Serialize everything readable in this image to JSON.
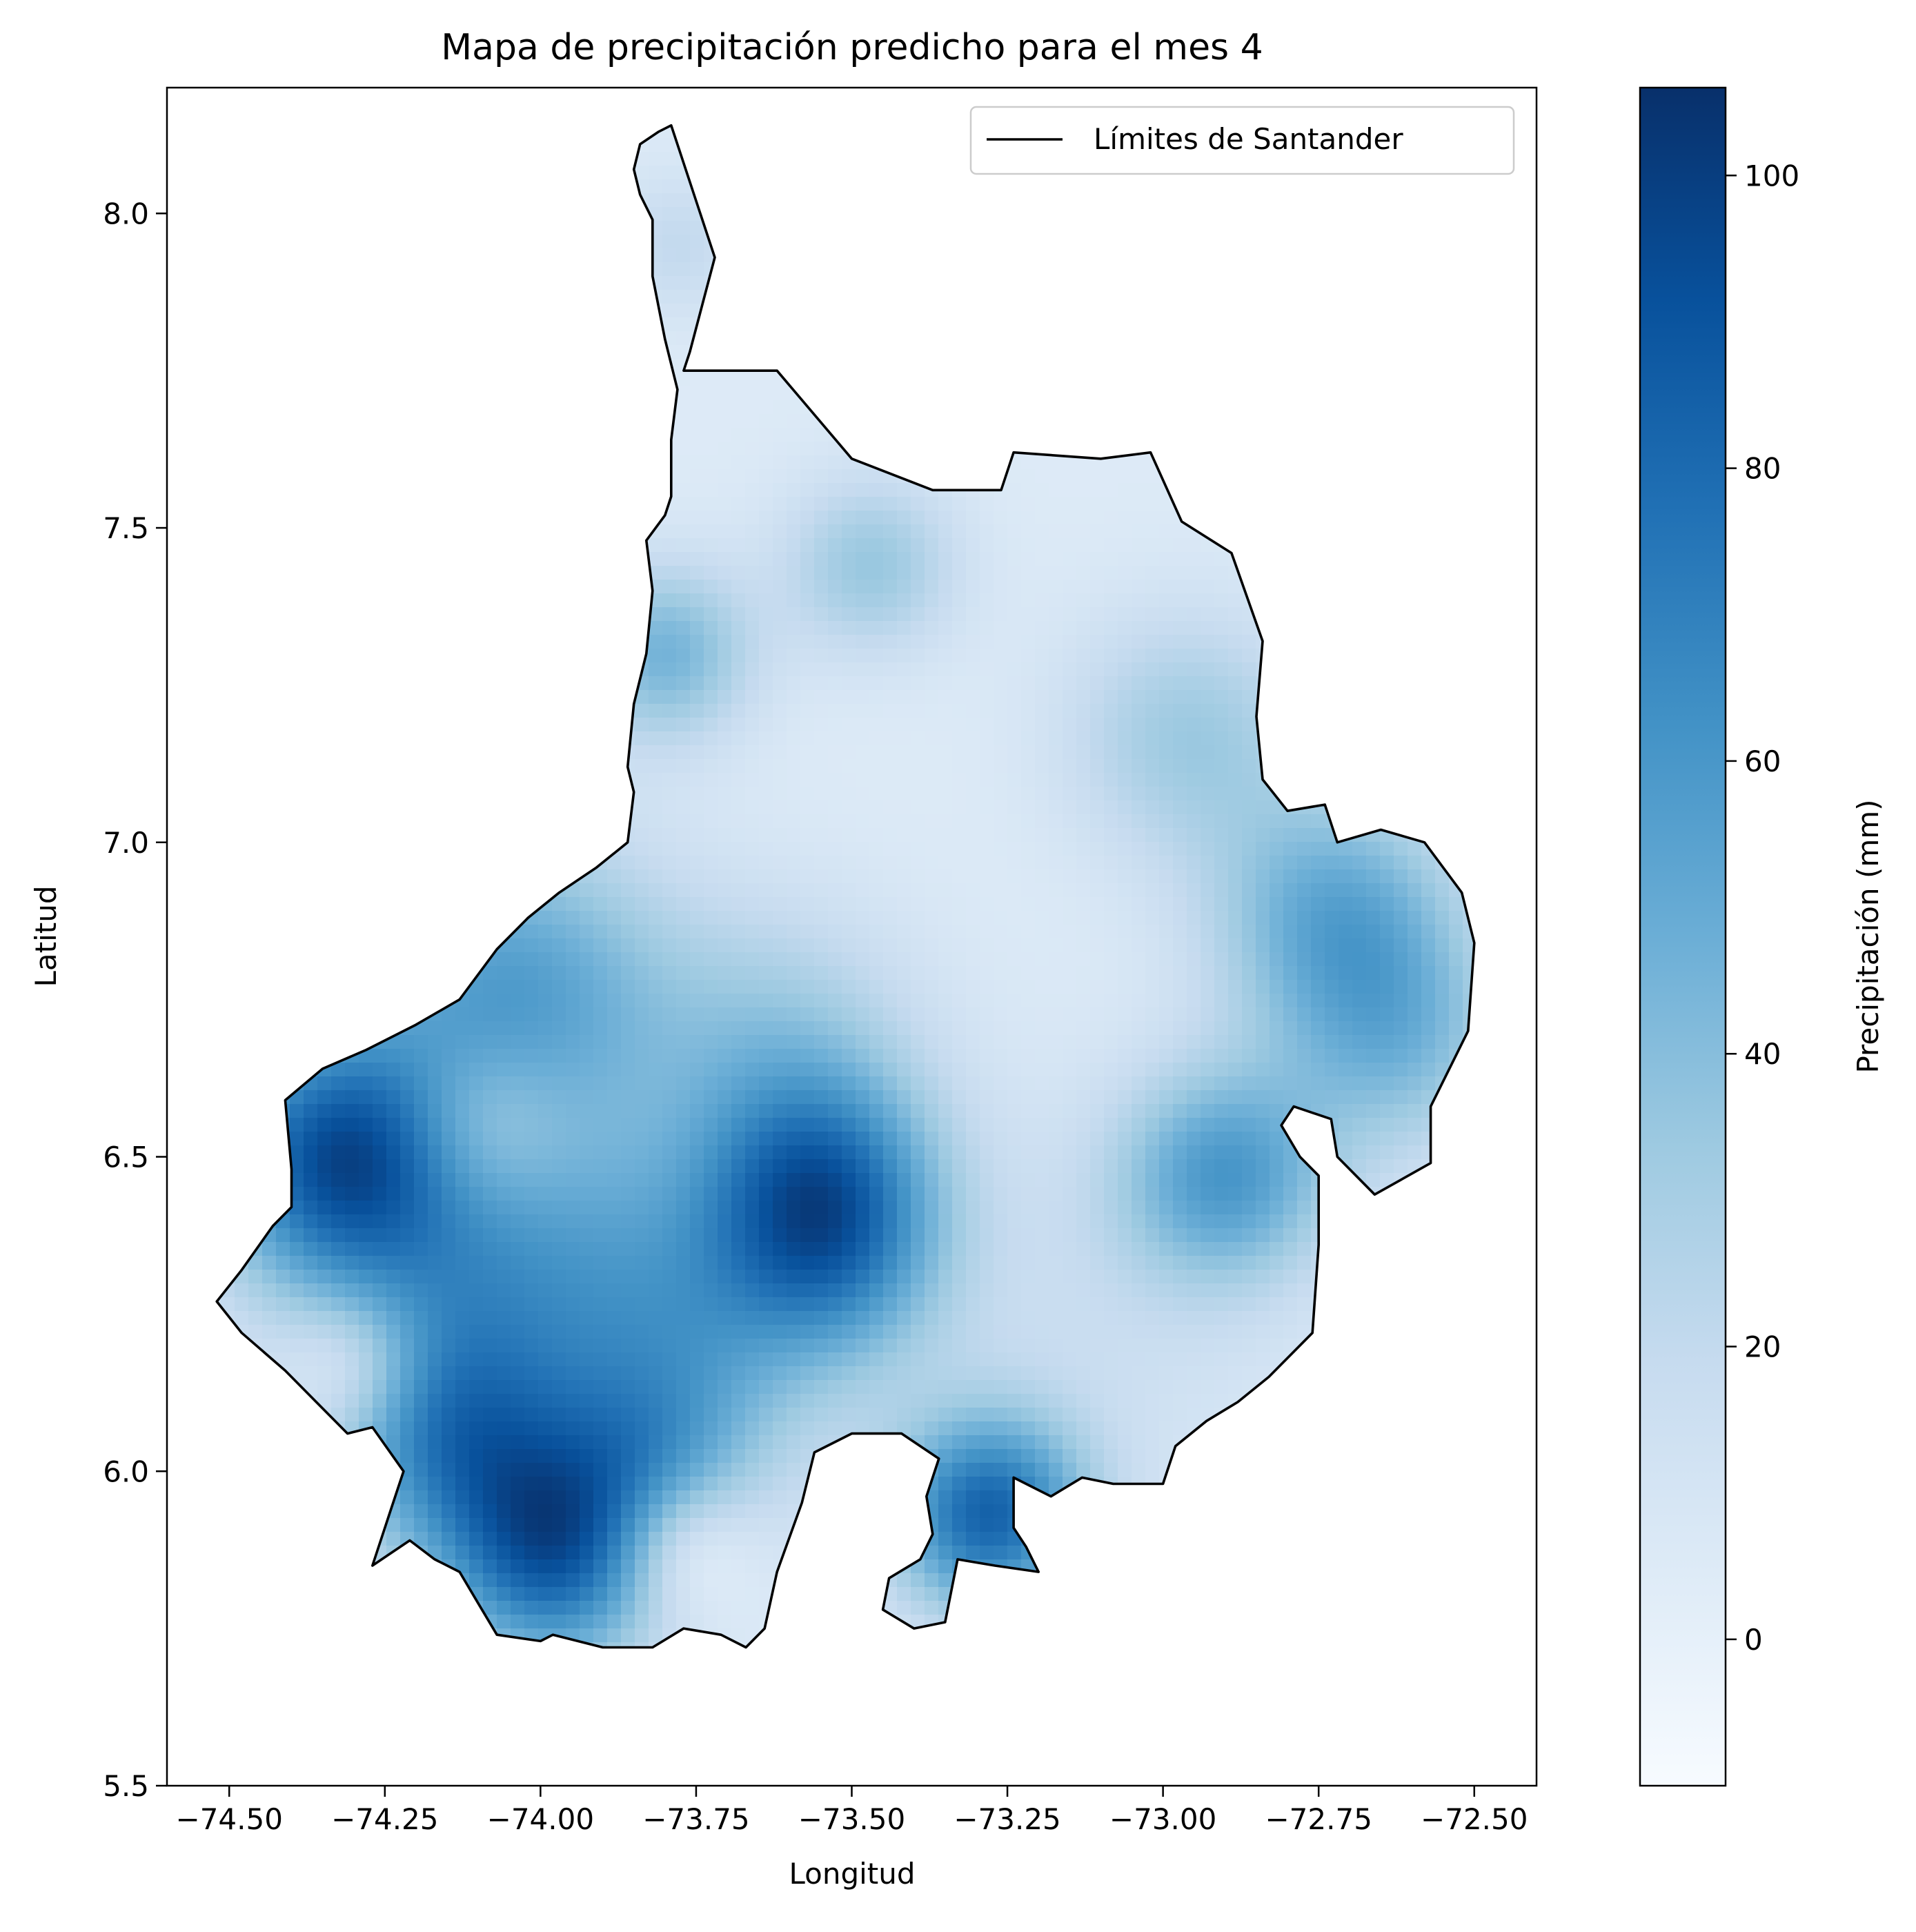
{
  "chart_data": {
    "type": "heatmap",
    "title": "Mapa de precipitación predicho para el mes 4",
    "xlabel": "Longitud",
    "ylabel": "Latitud",
    "xlim": [
      -74.6,
      -72.4
    ],
    "ylim": [
      5.5,
      8.2
    ],
    "x_ticks": [
      -74.5,
      -74.25,
      -74.0,
      -73.75,
      -73.5,
      -73.25,
      -73.0,
      -72.75,
      -72.5
    ],
    "x_tick_labels": [
      "−74.50",
      "−74.25",
      "−74.00",
      "−73.75",
      "−73.50",
      "−73.25",
      "−73.00",
      "−72.75",
      "−72.50"
    ],
    "y_ticks": [
      5.5,
      6.0,
      6.5,
      7.0,
      7.5,
      8.0
    ],
    "y_tick_labels": [
      "5.5",
      "6.0",
      "6.5",
      "7.0",
      "7.5",
      "8.0"
    ],
    "legend": {
      "placement": "upper-right",
      "entries": [
        {
          "label": "Límites de Santander",
          "color": "#000000",
          "style": "line"
        }
      ]
    },
    "colorbar": {
      "label": "Precipitación (mm)",
      "colormap": "Blues",
      "range": [
        -10,
        106
      ],
      "ticks": [
        0,
        20,
        40,
        60,
        80,
        100
      ],
      "tick_labels": [
        "0",
        "20",
        "40",
        "60",
        "80",
        "100"
      ]
    },
    "boundary_lonlat": [
      [
        -73.79,
        8.14
      ],
      [
        -73.72,
        7.93
      ],
      [
        -73.76,
        7.78
      ],
      [
        -73.77,
        7.75
      ],
      [
        -73.62,
        7.75
      ],
      [
        -73.5,
        7.61
      ],
      [
        -73.37,
        7.56
      ],
      [
        -73.26,
        7.56
      ],
      [
        -73.24,
        7.62
      ],
      [
        -73.1,
        7.61
      ],
      [
        -73.02,
        7.62
      ],
      [
        -72.97,
        7.51
      ],
      [
        -72.89,
        7.46
      ],
      [
        -72.84,
        7.32
      ],
      [
        -72.85,
        7.2
      ],
      [
        -72.84,
        7.1
      ],
      [
        -72.8,
        7.05
      ],
      [
        -72.74,
        7.06
      ],
      [
        -72.72,
        7.0
      ],
      [
        -72.65,
        7.02
      ],
      [
        -72.58,
        7.0
      ],
      [
        -72.52,
        6.92
      ],
      [
        -72.5,
        6.84
      ],
      [
        -72.51,
        6.7
      ],
      [
        -72.57,
        6.58
      ],
      [
        -72.57,
        6.49
      ],
      [
        -72.66,
        6.44
      ],
      [
        -72.72,
        6.5
      ],
      [
        -72.73,
        6.56
      ],
      [
        -72.79,
        6.58
      ],
      [
        -72.81,
        6.55
      ],
      [
        -72.78,
        6.5
      ],
      [
        -72.75,
        6.47
      ],
      [
        -72.75,
        6.36
      ],
      [
        -72.76,
        6.22
      ],
      [
        -72.83,
        6.15
      ],
      [
        -72.88,
        6.11
      ],
      [
        -72.93,
        6.08
      ],
      [
        -72.98,
        6.04
      ],
      [
        -73.0,
        5.98
      ],
      [
        -73.08,
        5.98
      ],
      [
        -73.13,
        5.99
      ],
      [
        -73.18,
        5.96
      ],
      [
        -73.24,
        5.99
      ],
      [
        -73.24,
        5.91
      ],
      [
        -73.22,
        5.88
      ],
      [
        -73.2,
        5.84
      ],
      [
        -73.27,
        5.85
      ],
      [
        -73.33,
        5.86
      ],
      [
        -73.35,
        5.76
      ],
      [
        -73.4,
        5.75
      ],
      [
        -73.45,
        5.78
      ],
      [
        -73.44,
        5.83
      ],
      [
        -73.39,
        5.86
      ],
      [
        -73.37,
        5.9
      ],
      [
        -73.38,
        5.96
      ],
      [
        -73.36,
        6.02
      ],
      [
        -73.42,
        6.06
      ],
      [
        -73.5,
        6.06
      ],
      [
        -73.56,
        6.03
      ],
      [
        -73.58,
        5.95
      ],
      [
        -73.62,
        5.84
      ],
      [
        -73.64,
        5.75
      ],
      [
        -73.67,
        5.72
      ],
      [
        -73.71,
        5.74
      ],
      [
        -73.77,
        5.75
      ],
      [
        -73.82,
        5.72
      ],
      [
        -73.9,
        5.72
      ],
      [
        -73.98,
        5.74
      ],
      [
        -74.0,
        5.73
      ],
      [
        -74.07,
        5.74
      ],
      [
        -74.1,
        5.79
      ],
      [
        -74.13,
        5.84
      ],
      [
        -74.17,
        5.86
      ],
      [
        -74.21,
        5.89
      ],
      [
        -74.24,
        5.87
      ],
      [
        -74.27,
        5.85
      ],
      [
        -74.24,
        5.94
      ],
      [
        -74.22,
        6.0
      ],
      [
        -74.27,
        6.07
      ],
      [
        -74.31,
        6.06
      ],
      [
        -74.36,
        6.11
      ],
      [
        -74.41,
        6.16
      ],
      [
        -74.48,
        6.22
      ],
      [
        -74.52,
        6.27
      ],
      [
        -74.48,
        6.32
      ],
      [
        -74.43,
        6.39
      ],
      [
        -74.4,
        6.42
      ],
      [
        -74.4,
        6.48
      ],
      [
        -74.41,
        6.59
      ],
      [
        -74.35,
        6.64
      ],
      [
        -74.28,
        6.67
      ],
      [
        -74.2,
        6.71
      ],
      [
        -74.13,
        6.75
      ],
      [
        -74.07,
        6.83
      ],
      [
        -74.02,
        6.88
      ],
      [
        -73.97,
        6.92
      ],
      [
        -73.91,
        6.96
      ],
      [
        -73.86,
        7.0
      ],
      [
        -73.85,
        7.08
      ],
      [
        -73.86,
        7.12
      ],
      [
        -73.85,
        7.22
      ],
      [
        -73.83,
        7.3
      ],
      [
        -73.82,
        7.4
      ],
      [
        -73.83,
        7.48
      ],
      [
        -73.8,
        7.52
      ],
      [
        -73.79,
        7.55
      ],
      [
        -73.79,
        7.64
      ],
      [
        -73.78,
        7.72
      ],
      [
        -73.8,
        7.8
      ],
      [
        -73.82,
        7.9
      ],
      [
        -73.82,
        7.99
      ],
      [
        -73.84,
        8.03
      ],
      [
        -73.85,
        8.07
      ],
      [
        -73.84,
        8.11
      ],
      [
        -73.81,
        8.13
      ],
      [
        -73.79,
        8.14
      ]
    ],
    "precipitation_field": {
      "base_mm": 5,
      "components": [
        {
          "lon": -73.55,
          "lat": 6.45,
          "amp_mm": 60,
          "spread_deg": 0.13
        },
        {
          "lon": -73.52,
          "lat": 6.32,
          "amp_mm": 25,
          "spread_deg": 0.12
        },
        {
          "lon": -73.62,
          "lat": 6.68,
          "amp_mm": 25,
          "spread_deg": 0.16
        },
        {
          "lon": -73.28,
          "lat": 5.93,
          "amp_mm": 75,
          "spread_deg": 0.11
        },
        {
          "lon": -73.98,
          "lat": 5.87,
          "amp_mm": 75,
          "spread_deg": 0.13
        },
        {
          "lon": -73.82,
          "lat": 6.02,
          "amp_mm": 30,
          "spread_deg": 0.12
        },
        {
          "lon": -74.33,
          "lat": 6.5,
          "amp_mm": 75,
          "spread_deg": 0.14
        },
        {
          "lon": -74.05,
          "lat": 6.76,
          "amp_mm": 50,
          "spread_deg": 0.18
        },
        {
          "lon": -74.1,
          "lat": 6.3,
          "amp_mm": 45,
          "spread_deg": 0.2
        },
        {
          "lon": -74.15,
          "lat": 6.05,
          "amp_mm": 45,
          "spread_deg": 0.13
        },
        {
          "lon": -73.75,
          "lat": 6.25,
          "amp_mm": 35,
          "spread_deg": 0.18
        },
        {
          "lon": -72.9,
          "lat": 6.47,
          "amp_mm": 50,
          "spread_deg": 0.12
        },
        {
          "lon": -72.72,
          "lat": 6.88,
          "amp_mm": 45,
          "spread_deg": 0.14
        },
        {
          "lon": -72.62,
          "lat": 6.68,
          "amp_mm": 32,
          "spread_deg": 0.13
        },
        {
          "lon": -72.96,
          "lat": 7.17,
          "amp_mm": 28,
          "spread_deg": 0.14
        },
        {
          "lon": -73.47,
          "lat": 7.44,
          "amp_mm": 30,
          "spread_deg": 0.1
        },
        {
          "lon": -73.8,
          "lat": 7.3,
          "amp_mm": 40,
          "spread_deg": 0.1
        },
        {
          "lon": -73.78,
          "lat": 7.95,
          "amp_mm": 15,
          "spread_deg": 0.08
        },
        {
          "lon": -73.12,
          "lat": 6.25,
          "amp_mm": 10,
          "spread_deg": 0.25
        },
        {
          "lon": -74.3,
          "lat": 6.17,
          "amp_mm": -25,
          "spread_deg": 0.08
        },
        {
          "lon": -73.78,
          "lat": 5.88,
          "amp_mm": -28,
          "spread_deg": 0.08
        },
        {
          "lon": -74.1,
          "lat": 6.55,
          "amp_mm": -25,
          "spread_deg": 0.1
        }
      ]
    }
  }
}
